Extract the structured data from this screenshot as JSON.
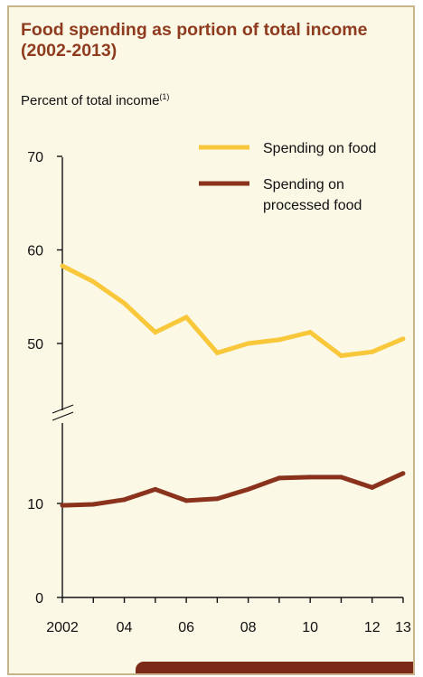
{
  "header": {
    "title": "Food spending as portion of total income (2002-2013)",
    "subtitle": "Percent of total income",
    "subtitle_note": "(1)"
  },
  "colors": {
    "food": "#f8c73a",
    "processed": "#8a321c",
    "card_background": "#fbf8e6",
    "card_border": "#c8b48a",
    "title": "#8f3b1e"
  },
  "chart_data": {
    "type": "line",
    "x": [
      2002,
      2003,
      2004,
      2005,
      2006,
      2007,
      2008,
      2009,
      2010,
      2011,
      2012,
      2013
    ],
    "x_tick_labels": [
      {
        "x": 2002,
        "label": "2002"
      },
      {
        "x": 2004,
        "label": "04"
      },
      {
        "x": 2006,
        "label": "06"
      },
      {
        "x": 2008,
        "label": "08"
      },
      {
        "x": 2010,
        "label": "10"
      },
      {
        "x": 2012,
        "label": "12"
      },
      {
        "x": 2013,
        "label": "13"
      }
    ],
    "y_tick_labels": [
      {
        "y": 0,
        "label": "0"
      },
      {
        "y": 10,
        "label": "10"
      },
      {
        "y": 50,
        "label": "50"
      },
      {
        "y": 60,
        "label": "60"
      },
      {
        "y": 70,
        "label": "70"
      }
    ],
    "y_axis_break": true,
    "series": [
      {
        "name": "Spending on food",
        "color": "#f8c73a",
        "values": [
          58.3,
          56.6,
          54.3,
          51.2,
          52.8,
          49.0,
          50.0,
          50.4,
          51.2,
          48.7,
          49.1,
          50.5
        ]
      },
      {
        "name": "Spending on processed food",
        "name_lines": [
          "Spending on",
          "processed food"
        ],
        "color": "#8a321c",
        "values": [
          9.8,
          9.9,
          10.4,
          11.5,
          10.3,
          10.5,
          11.5,
          12.7,
          12.8,
          12.8,
          11.7,
          13.2
        ]
      }
    ],
    "legend": "top-right",
    "grid": false
  }
}
